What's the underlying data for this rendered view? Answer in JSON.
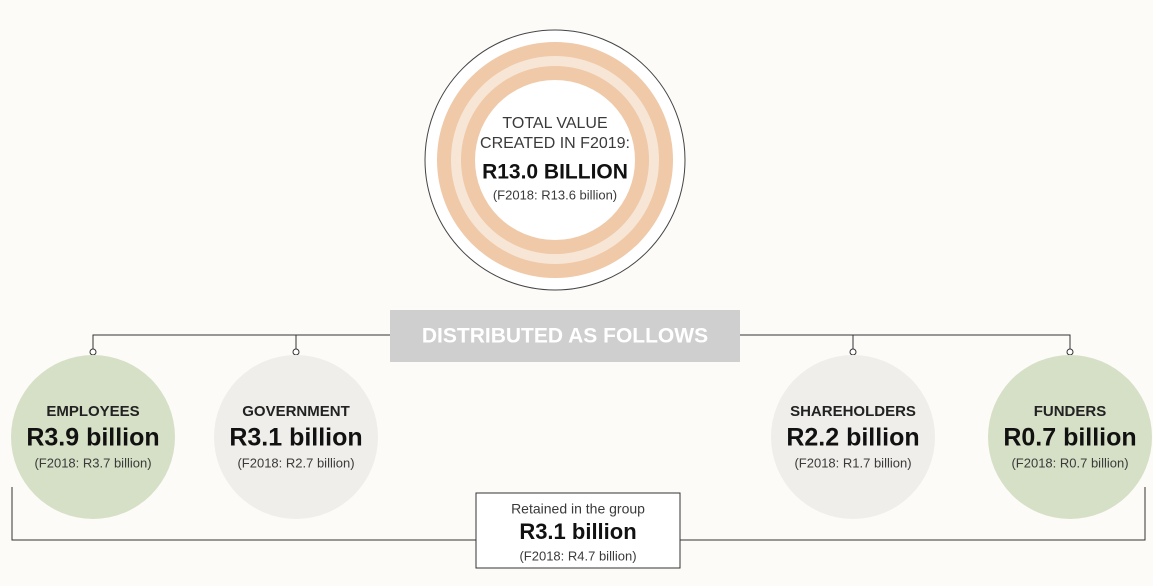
{
  "center": {
    "title_lines": [
      "TOTAL VALUE",
      "CREATED IN F2019:"
    ],
    "value": "R13.0 BILLION",
    "prior": "(F2018: R13.6 billion)"
  },
  "banner": "DISTRIBUTED AS FOLLOWS",
  "stakeholders": [
    {
      "name": "EMPLOYEES",
      "value": "R3.9 billion",
      "prior": "(F2018: R3.7 billion)"
    },
    {
      "name": "GOVERNMENT",
      "value": "R3.1 billion",
      "prior": "(F2018: R2.7 billion)"
    },
    {
      "name": "SHAREHOLDERS",
      "value": "R2.2 billion",
      "prior": "(F2018: R1.7 billion)"
    },
    {
      "name": "FUNDERS",
      "value": "R0.7 billion",
      "prior": "(F2018: R0.7 billion)"
    }
  ],
  "retained": {
    "label": "Retained in the group",
    "value": "R3.1 billion",
    "prior": "(F2018: R4.7 billion)"
  }
}
